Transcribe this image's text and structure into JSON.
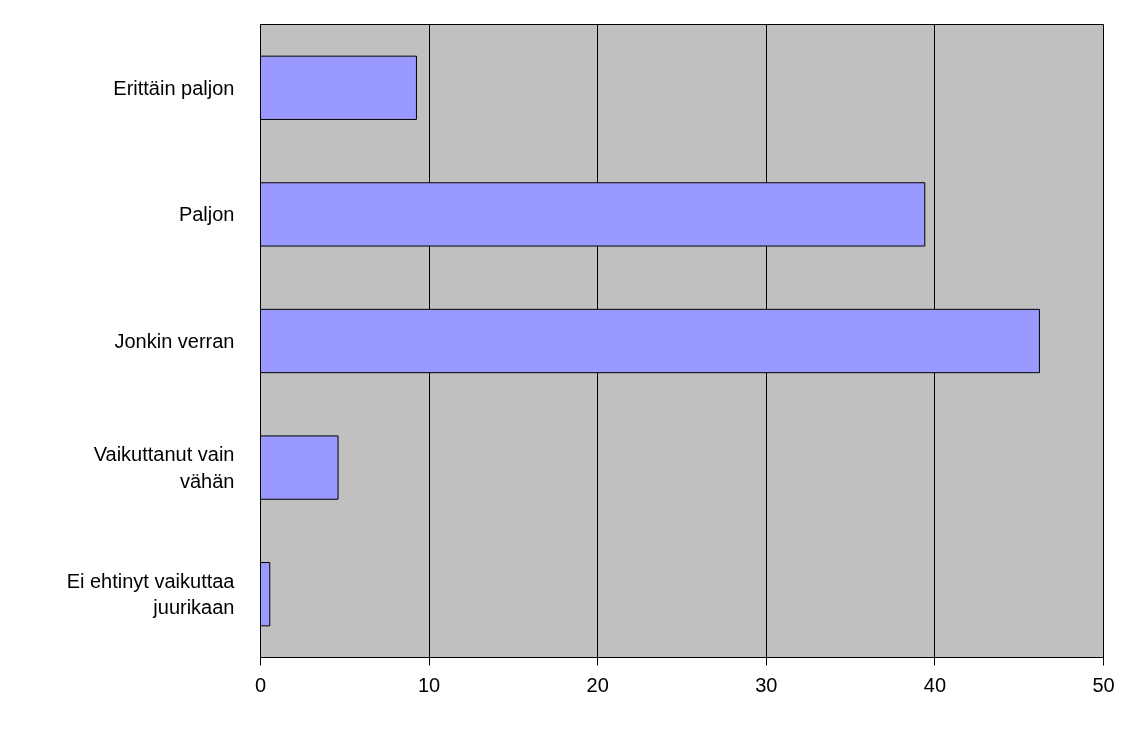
{
  "chart_data": {
    "type": "bar",
    "orientation": "horizontal",
    "categories": [
      "Erittäin paljon",
      "Paljon",
      "Jonkin verran",
      "Vaikuttanut vain vähän",
      "Ei ehtinyt vaikuttaa juurikaan"
    ],
    "values": [
      9.25,
      39.4,
      46.2,
      4.6,
      0.55
    ],
    "color": "#9999ff",
    "xlim": [
      0,
      50
    ],
    "xticks": [
      0,
      10,
      20,
      30,
      40,
      50
    ],
    "grid": "x"
  }
}
